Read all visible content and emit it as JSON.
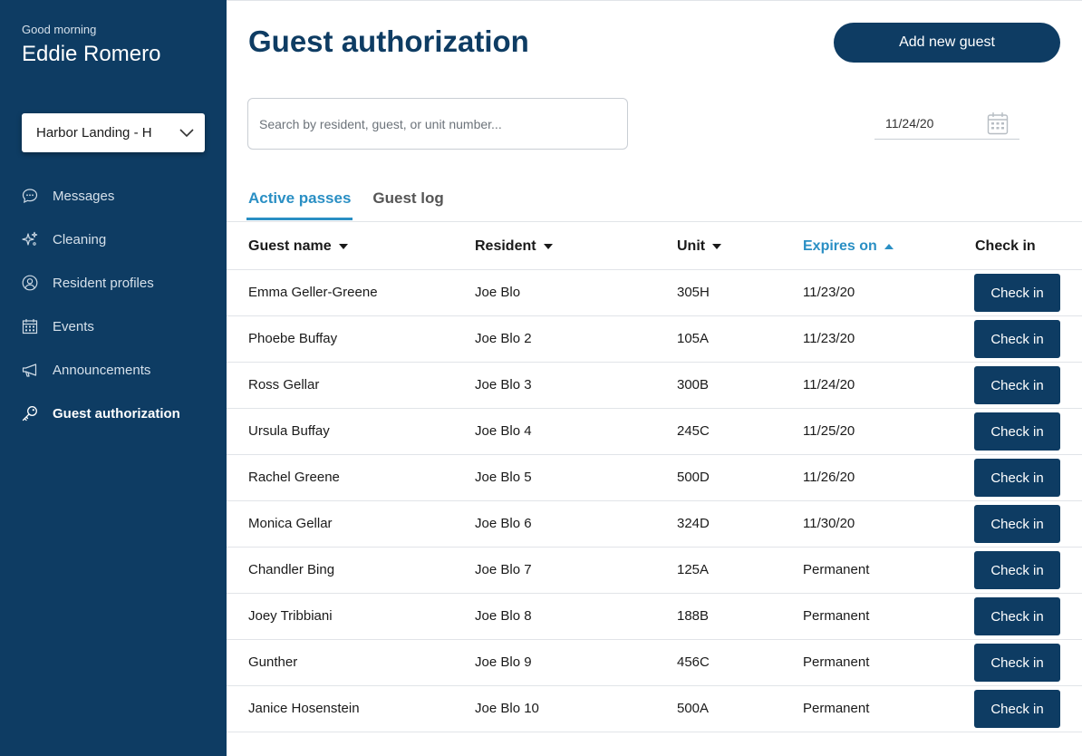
{
  "user": {
    "greeting": "Good morning",
    "name": "Eddie Romero"
  },
  "property_select": {
    "value": "Harbor Landing - H"
  },
  "nav": [
    {
      "label": "Messages",
      "icon": "chat-bubble-icon",
      "active": false
    },
    {
      "label": "Cleaning",
      "icon": "sparkle-icon",
      "active": false
    },
    {
      "label": "Resident profiles",
      "icon": "user-circle-icon",
      "active": false
    },
    {
      "label": "Events",
      "icon": "calendar-icon",
      "active": false
    },
    {
      "label": "Announcements",
      "icon": "megaphone-icon",
      "active": false
    },
    {
      "label": "Guest authorization",
      "icon": "key-icon",
      "active": true
    }
  ],
  "page": {
    "title": "Guest authorization",
    "add_button": "Add new guest"
  },
  "search": {
    "placeholder": "Search by resident, guest, or unit number..."
  },
  "date": {
    "value": "11/24/20"
  },
  "tabs": [
    {
      "label": "Active passes",
      "active": true
    },
    {
      "label": "Guest log",
      "active": false
    }
  ],
  "table": {
    "columns": [
      {
        "label": "Guest name",
        "sort": "desc",
        "sorted": false
      },
      {
        "label": "Resident",
        "sort": "desc",
        "sorted": false
      },
      {
        "label": "Unit",
        "sort": "desc",
        "sorted": false
      },
      {
        "label": "Expires on",
        "sort": "asc",
        "sorted": true
      },
      {
        "label": "Check in",
        "sort": null,
        "sorted": false
      }
    ],
    "rows": [
      {
        "guest": "Emma Geller-Greene",
        "resident": "Joe Blo",
        "unit": "305H",
        "expires": "11/23/20",
        "action": "Check in"
      },
      {
        "guest": "Phoebe Buffay",
        "resident": "Joe Blo 2",
        "unit": "105A",
        "expires": "11/23/20",
        "action": "Check in"
      },
      {
        "guest": "Ross Gellar",
        "resident": "Joe Blo 3",
        "unit": "300B",
        "expires": "11/24/20",
        "action": "Check in"
      },
      {
        "guest": "Ursula Buffay",
        "resident": "Joe Blo 4",
        "unit": "245C",
        "expires": "11/25/20",
        "action": "Check in"
      },
      {
        "guest": "Rachel Greene",
        "resident": "Joe Blo 5",
        "unit": "500D",
        "expires": "11/26/20",
        "action": "Check in"
      },
      {
        "guest": "Monica Gellar",
        "resident": "Joe Blo 6",
        "unit": "324D",
        "expires": "11/30/20",
        "action": "Check in"
      },
      {
        "guest": "Chandler Bing",
        "resident": "Joe Blo 7",
        "unit": "125A",
        "expires": "Permanent",
        "action": "Check in"
      },
      {
        "guest": "Joey Tribbiani",
        "resident": "Joe Blo 8",
        "unit": "188B",
        "expires": "Permanent",
        "action": "Check in"
      },
      {
        "guest": "Gunther",
        "resident": "Joe Blo 9",
        "unit": "456C",
        "expires": "Permanent",
        "action": "Check in"
      },
      {
        "guest": "Janice Hosenstein",
        "resident": "Joe Blo 10",
        "unit": "500A",
        "expires": "Permanent",
        "action": "Check in"
      }
    ]
  },
  "colors": {
    "sidebar": "#0e3c63",
    "accent": "#2a8fc4",
    "primary_button": "#0e3c63"
  }
}
